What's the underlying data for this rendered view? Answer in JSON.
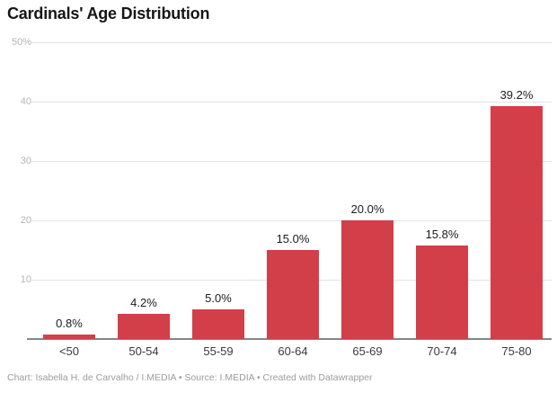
{
  "chart_data": {
    "type": "bar",
    "title": "Cardinals' Age Distribution",
    "categories": [
      "<50",
      "50-54",
      "55-59",
      "60-64",
      "65-69",
      "70-74",
      "75-80"
    ],
    "values": [
      0.8,
      4.2,
      5.0,
      15.0,
      20.0,
      15.8,
      39.2
    ],
    "value_labels": [
      "0.8%",
      "4.2%",
      "5.0%",
      "15.0%",
      "20.0%",
      "15.8%",
      "39.2%"
    ],
    "xlabel": "",
    "ylabel": "",
    "ylim": [
      0,
      50
    ],
    "yticks": [
      {
        "value": 50,
        "label": "50%"
      },
      {
        "value": 40,
        "label": "40"
      },
      {
        "value": 30,
        "label": "30"
      },
      {
        "value": 20,
        "label": "20"
      },
      {
        "value": 10,
        "label": "10"
      }
    ],
    "grid": "horizontal",
    "legend": "none"
  },
  "footer": {
    "text": "Chart: Isabella H. de Carvalho / I.MEDIA • Source: I.MEDIA • Created with Datawrapper"
  },
  "colors": {
    "bar": "#d33f49",
    "title": "#161616",
    "grid": "#e3e3e3",
    "baseline": "#868686",
    "ytick": "#b5b5b5",
    "category": "#3a3a3a",
    "value_label": "#1c1c1c",
    "footer": "#9c9c9c",
    "background": "#ffffff"
  }
}
